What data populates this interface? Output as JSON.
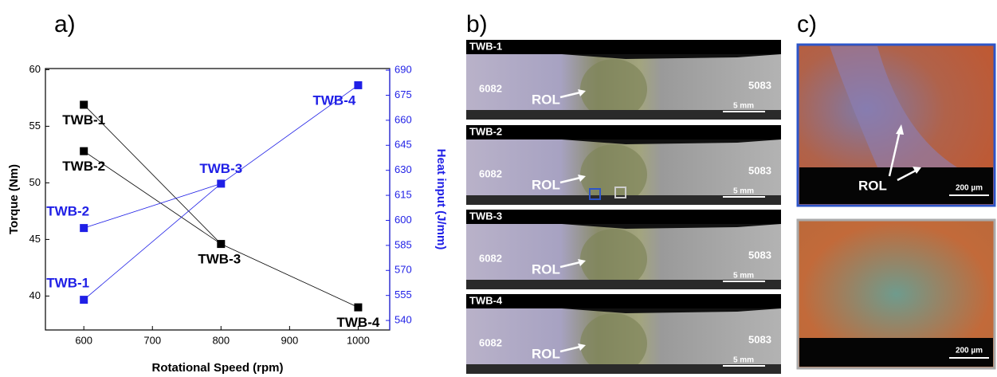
{
  "panels": {
    "a": "a)",
    "b": "b)",
    "c": "c)"
  },
  "chart_data": {
    "type": "scatter",
    "xlabel": "Rotational Speed (rpm)",
    "xlim": [
      544,
      1046
    ],
    "xticks": [
      600,
      700,
      800,
      900,
      1000
    ],
    "ylim": [
      37,
      60.1
    ],
    "yticks": [
      40,
      45,
      50,
      55,
      60
    ],
    "y2lim": [
      534.3,
      691
    ],
    "y2ticks": [
      540,
      555,
      570,
      585,
      600,
      615,
      630,
      645,
      660,
      675,
      690
    ],
    "series": [
      {
        "name": "Torque (Nm)",
        "color": "#000000",
        "x": [
          600,
          600,
          800,
          1000
        ],
        "values": [
          56.9,
          52.8,
          44.6,
          39.0
        ],
        "labels": [
          "TWB-1",
          "TWB-2",
          "TWB-3",
          "TWB-4"
        ]
      },
      {
        "name": "Heat input (J/mm)",
        "color": "#1f1fe6",
        "axis": "y2",
        "x": [
          600,
          600,
          800,
          1000
        ],
        "values": [
          552.4,
          595.4,
          622,
          681
        ],
        "labels": [
          "TWB-1",
          "TWB-2",
          "TWB-3",
          "TWB-4"
        ]
      }
    ]
  },
  "micrographs": [
    {
      "label": "TWB-1",
      "left": "6082",
      "right": "5083",
      "marker": "ROL",
      "scale": "5 mm"
    },
    {
      "label": "TWB-2",
      "left": "6082",
      "right": "5083",
      "marker": "ROL",
      "scale": "5 mm"
    },
    {
      "label": "TWB-3",
      "left": "6082",
      "right": "5083",
      "marker": "ROL",
      "scale": "5 mm"
    },
    {
      "label": "TWB-4",
      "left": "6082",
      "right": "5083",
      "marker": "ROL",
      "scale": "5 mm"
    }
  ],
  "details": [
    {
      "marker": "ROL",
      "scale": "200 µm"
    },
    {
      "scale": "200 µm"
    }
  ]
}
